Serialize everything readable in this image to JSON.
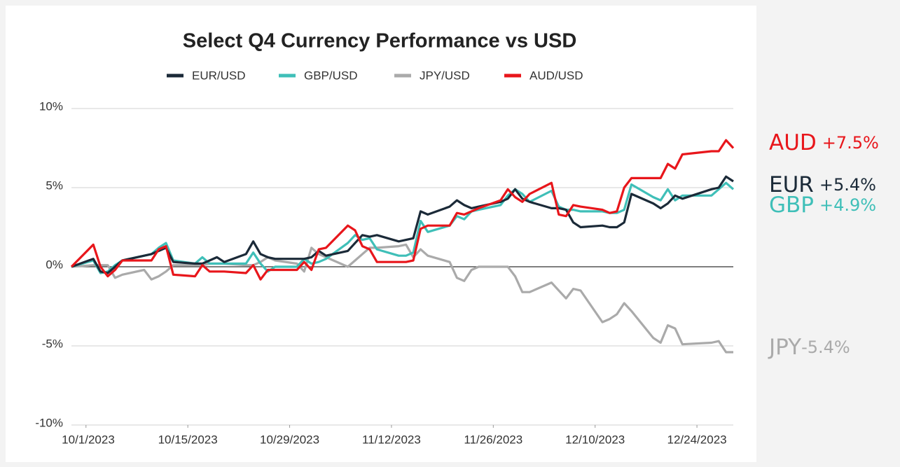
{
  "chart_data": {
    "type": "line",
    "title": "Select Q4 Currency Performance vs USD",
    "x": [
      "2023-09-29",
      "2023-10-02",
      "2023-10-03",
      "2023-10-04",
      "2023-10-05",
      "2023-10-06",
      "2023-10-09",
      "2023-10-10",
      "2023-10-11",
      "2023-10-12",
      "2023-10-13",
      "2023-10-16",
      "2023-10-17",
      "2023-10-18",
      "2023-10-19",
      "2023-10-20",
      "2023-10-23",
      "2023-10-24",
      "2023-10-25",
      "2023-10-26",
      "2023-10-27",
      "2023-10-30",
      "2023-10-31",
      "2023-11-01",
      "2023-11-02",
      "2023-11-03",
      "2023-11-06",
      "2023-11-07",
      "2023-11-08",
      "2023-11-09",
      "2023-11-10",
      "2023-11-13",
      "2023-11-14",
      "2023-11-15",
      "2023-11-16",
      "2023-11-17",
      "2023-11-20",
      "2023-11-21",
      "2023-11-22",
      "2023-11-23",
      "2023-11-24",
      "2023-11-27",
      "2023-11-28",
      "2023-11-29",
      "2023-11-30",
      "2023-12-01",
      "2023-12-04",
      "2023-12-05",
      "2023-12-06",
      "2023-12-07",
      "2023-12-08",
      "2023-12-11",
      "2023-12-12",
      "2023-12-13",
      "2023-12-14",
      "2023-12-15",
      "2023-12-18",
      "2023-12-19",
      "2023-12-20",
      "2023-12-21",
      "2023-12-22",
      "2023-12-26",
      "2023-12-27",
      "2023-12-28",
      "2023-12-29"
    ],
    "series": [
      {
        "name": "EUR/USD",
        "color": "#1b2a38",
        "values": [
          0,
          0.5,
          -0.3,
          -0.4,
          0,
          0.4,
          0.7,
          0.8,
          1.0,
          1.2,
          0.3,
          0.2,
          0.2,
          0.4,
          0.6,
          0.3,
          0.8,
          1.6,
          0.8,
          0.6,
          0.5,
          0.5,
          0.5,
          0.6,
          1.0,
          0.7,
          1.0,
          1.5,
          2.0,
          1.9,
          2.0,
          1.6,
          1.7,
          1.8,
          3.5,
          3.3,
          3.8,
          4.2,
          3.9,
          3.7,
          3.8,
          4.1,
          4.3,
          4.9,
          4.3,
          4.1,
          3.7,
          3.7,
          3.6,
          2.8,
          2.5,
          2.6,
          2.5,
          2.5,
          2.8,
          4.6,
          4.0,
          3.7,
          4.0,
          4.5,
          4.3,
          4.9,
          5.0,
          5.7,
          5.4
        ]
      },
      {
        "name": "GBP/USD",
        "color": "#3fbfb8",
        "values": [
          0,
          0.4,
          -0.4,
          -0.3,
          0.1,
          0.4,
          0.7,
          0.8,
          1.2,
          1.5,
          0.4,
          0.2,
          0.6,
          0.2,
          0.2,
          0.2,
          0.2,
          0.9,
          0.2,
          -0.3,
          0.0,
          0.0,
          0.5,
          0.2,
          0.3,
          0.5,
          1.5,
          2.0,
          1.7,
          1.8,
          1.1,
          0.7,
          0.7,
          0.9,
          2.9,
          2.2,
          2.6,
          3.2,
          3.0,
          3.5,
          3.6,
          3.9,
          4.5,
          4.9,
          4.6,
          4.1,
          4.8,
          3.8,
          3.6,
          3.6,
          3.5,
          3.5,
          3.4,
          3.4,
          3.6,
          5.2,
          4.4,
          4.2,
          4.9,
          4.2,
          4.5,
          4.5,
          4.9,
          5.3,
          4.9
        ]
      },
      {
        "name": "JPY/USD",
        "color": "#aaaaaa",
        "values": [
          0,
          0.1,
          0.1,
          0.1,
          -0.7,
          -0.5,
          -0.2,
          -0.8,
          -0.6,
          -0.3,
          0.1,
          0.1,
          0.1,
          0.2,
          0.2,
          0.2,
          0.1,
          0.1,
          0.3,
          0.6,
          0.4,
          0.2,
          -0.3,
          1.2,
          0.8,
          0.6,
          0.0,
          0.4,
          0.8,
          1.2,
          1.2,
          1.3,
          1.4,
          0.6,
          1.1,
          0.7,
          0.3,
          -0.7,
          -0.9,
          -0.2,
          0.0,
          0.0,
          0.0,
          -0.6,
          -1.6,
          -1.6,
          -1.0,
          -1.5,
          -2.0,
          -1.4,
          -1.5,
          -3.5,
          -3.3,
          -3.0,
          -2.3,
          -2.8,
          -4.5,
          -4.8,
          -3.7,
          -3.9,
          -4.9,
          -4.8,
          -4.7,
          -5.4,
          -5.4
        ]
      },
      {
        "name": "AUD/USD",
        "color": "#e8161b",
        "values": [
          0,
          1.4,
          0.0,
          -0.6,
          -0.2,
          0.4,
          0.4,
          0.4,
          1.1,
          1.3,
          -0.5,
          -0.6,
          0.1,
          -0.3,
          -0.3,
          -0.3,
          -0.4,
          0.1,
          -0.8,
          -0.2,
          -0.2,
          -0.2,
          0.3,
          -0.2,
          1.1,
          1.2,
          2.6,
          2.3,
          1.3,
          1.1,
          0.3,
          0.3,
          0.3,
          0.4,
          2.4,
          2.6,
          2.6,
          3.4,
          3.3,
          3.5,
          3.7,
          4.2,
          4.9,
          4.4,
          4.1,
          4.6,
          5.3,
          3.3,
          3.2,
          3.9,
          3.8,
          3.6,
          3.4,
          3.5,
          5.0,
          5.6,
          5.6,
          5.6,
          6.5,
          6.2,
          7.1,
          7.3,
          7.3,
          8.0,
          7.5
        ]
      }
    ],
    "xlim": [
      "2023-09-29",
      "2023-12-29"
    ],
    "xticks": [
      {
        "value": "2023-10-01",
        "label": "10/1/2023"
      },
      {
        "value": "2023-10-15",
        "label": "10/15/2023"
      },
      {
        "value": "2023-10-29",
        "label": "10/29/2023"
      },
      {
        "value": "2023-11-12",
        "label": "11/12/2023"
      },
      {
        "value": "2023-11-26",
        "label": "11/26/2023"
      },
      {
        "value": "2023-12-10",
        "label": "12/10/2023"
      },
      {
        "value": "2023-12-24",
        "label": "12/24/2023"
      }
    ],
    "ylim": [
      -10,
      10
    ],
    "yticks": [
      {
        "value": -10,
        "label": "-10%"
      },
      {
        "value": -5,
        "label": "-5%"
      },
      {
        "value": 0,
        "label": "0%"
      },
      {
        "value": 5,
        "label": "5%"
      },
      {
        "value": 10,
        "label": "10%"
      }
    ],
    "grid": true,
    "legend": "top",
    "annotations": [
      {
        "currency": "AUD",
        "change": "+7.5%",
        "color": "#e8161b"
      },
      {
        "currency": "EUR",
        "change": "+5.4%",
        "color": "#1b2a38"
      },
      {
        "currency": "GBP",
        "change": "+4.9%",
        "color": "#3fbfb8"
      },
      {
        "currency": "JPY",
        "change": "-5.4%",
        "color": "#aaaaaa"
      }
    ]
  }
}
